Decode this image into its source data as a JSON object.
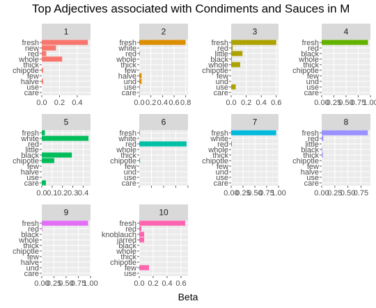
{
  "chart_data": {
    "type": "bar",
    "orientation": "horizontal",
    "title": "Top Adjectives associated with Condiments and Sauces in M",
    "xlabel": "Beta",
    "ylabel": "",
    "grid": true,
    "facets": [
      {
        "label": "1",
        "color": "#F8766D",
        "categories": [
          "fresh",
          "new",
          "red",
          "whole",
          "thick",
          "chipotle",
          "few",
          "halve",
          "use",
          "care"
        ],
        "values": [
          0.52,
          0.16,
          0.05,
          0.23,
          0.0,
          0.015,
          0.0,
          0.015,
          0.0,
          0.0
        ],
        "xlim": [
          0,
          0.55
        ],
        "ticks": [
          0.0,
          0.2,
          0.4
        ],
        "tick_labels": [
          "0.0",
          "0.2",
          "0.4"
        ]
      },
      {
        "label": "2",
        "color": "#DB8E00",
        "categories": [
          "fresh",
          "white",
          "red",
          "whole",
          "thick",
          "few",
          "halve",
          "und",
          "use",
          "care"
        ],
        "values": [
          0.8,
          0.0,
          0.01,
          0.0,
          0.0,
          0.0,
          0.04,
          0.04,
          0.01,
          0.005
        ],
        "xlim": [
          0,
          0.84
        ],
        "ticks": [
          0.0,
          0.2,
          0.4,
          0.6,
          0.8
        ],
        "tick_labels": [
          "0.0",
          "0.2",
          "0.4",
          "0.6",
          "0.8"
        ]
      },
      {
        "label": "3",
        "color": "#AEA200",
        "categories": [
          "fresh",
          "red",
          "little",
          "black",
          "whole",
          "chipotle",
          "few",
          "und",
          "use",
          "care"
        ],
        "values": [
          0.6,
          0.02,
          0.15,
          0.01,
          0.12,
          0.0,
          0.0,
          0.0,
          0.06,
          0.0
        ],
        "xlim": [
          0,
          0.63
        ],
        "ticks": [
          0.0,
          0.2,
          0.4,
          0.6
        ],
        "tick_labels": [
          "0.0",
          "0.2",
          "0.4",
          "0.6"
        ]
      },
      {
        "label": "4",
        "color": "#64B200",
        "categories": [
          "fresh",
          "red",
          "black",
          "whole",
          "thick",
          "chipotle",
          "few",
          "und",
          "use",
          "care"
        ],
        "values": [
          0.95,
          0.0,
          0.0,
          0.0,
          0.0,
          0.0,
          0.0,
          0.0,
          0.0,
          0.0
        ],
        "xlim": [
          0,
          1.0
        ],
        "ticks": [
          0.0,
          0.25,
          0.5,
          0.75,
          1.0
        ],
        "tick_labels": [
          "0.00",
          "0.25",
          "0.50",
          "0.75",
          "1.00"
        ]
      },
      {
        "label": "5",
        "color": "#00BD5C",
        "categories": [
          "fresh",
          "white",
          "red",
          "little",
          "black",
          "chipotle",
          "few",
          "halve",
          "use",
          "care"
        ],
        "values": [
          0.03,
          0.45,
          0.0,
          0.0,
          0.29,
          0.12,
          0.0,
          0.0,
          0.0,
          0.04
        ],
        "xlim": [
          0,
          0.47
        ],
        "ticks": [
          0.0,
          0.1,
          0.2,
          0.3,
          0.4
        ],
        "tick_labels": [
          "0.0",
          "0.1",
          "0.2",
          "0.3",
          "0.4"
        ]
      },
      {
        "label": "6",
        "color": "#00C1A7",
        "categories": [
          "fresh",
          "white",
          "red",
          "whole",
          "thick",
          "chipotle",
          "few",
          "und",
          "use",
          "care"
        ],
        "values": [
          0.01,
          0.0,
          0.97,
          0.0,
          0.0,
          0.015,
          0.0,
          0.0,
          0.0,
          0.0
        ],
        "xlim": [
          0,
          1.0
        ],
        "ticks": [
          0.0,
          0.25,
          0.5,
          0.75,
          1.0
        ],
        "tick_labels": [
          "",
          "",
          "",
          "",
          ""
        ]
      },
      {
        "label": "7",
        "color": "#00BADE",
        "categories": [
          "fresh",
          "white",
          "red",
          "whole",
          "thick",
          "chipotle",
          "few",
          "und",
          "use",
          "care"
        ],
        "values": [
          0.95,
          0.0,
          0.015,
          0.0,
          0.0,
          0.0,
          0.0,
          0.0,
          0.0,
          0.0
        ],
        "xlim": [
          0,
          1.0
        ],
        "ticks": [
          0.0,
          0.25,
          0.5,
          0.75,
          1.0
        ],
        "tick_labels": [
          "0.00",
          "0.25",
          "0.50",
          "0.75",
          "1.00"
        ]
      },
      {
        "label": "8",
        "color": "#9A91FF",
        "categories": [
          "fresh",
          "red",
          "little",
          "black",
          "thick",
          "chipotle",
          "few",
          "halve",
          "use",
          "care"
        ],
        "values": [
          0.88,
          0.03,
          0.0,
          0.01,
          0.02,
          0.0,
          0.0,
          0.0,
          0.0,
          0.0
        ],
        "xlim": [
          0,
          0.93
        ],
        "ticks": [
          0.0,
          0.25,
          0.5,
          0.75
        ],
        "tick_labels": [
          "0.00",
          "0.25",
          "0.50",
          "0.75"
        ]
      },
      {
        "label": "9",
        "color": "#E36EF6",
        "categories": [
          "fresh",
          "red",
          "black",
          "whole",
          "thick",
          "chipotle",
          "few",
          "halve",
          "und",
          "care"
        ],
        "values": [
          0.95,
          0.01,
          0.0,
          0.0,
          0.0,
          0.0,
          0.0,
          0.0,
          0.0,
          0.0
        ],
        "xlim": [
          0,
          1.0
        ],
        "ticks": [
          0.0,
          0.25,
          0.5,
          0.75,
          1.0
        ],
        "tick_labels": [
          "0.00",
          "0.25",
          "0.50",
          "0.75",
          "1.00"
        ]
      },
      {
        "label": "10",
        "color": "#FF64B0",
        "categories": [
          "fresh",
          "red",
          "knoblauch",
          "jarred",
          "black",
          "whole",
          "thick",
          "chipotle",
          "few",
          "use"
        ],
        "values": [
          0.66,
          0.03,
          0.07,
          0.07,
          0.0,
          0.0,
          0.0,
          0.0,
          0.14,
          0.0
        ],
        "xlim": [
          0,
          0.7
        ],
        "ticks": [
          0.0,
          0.2,
          0.4,
          0.6
        ],
        "tick_labels": [
          "0.0",
          "0.2",
          "0.4",
          "0.6"
        ]
      }
    ]
  }
}
